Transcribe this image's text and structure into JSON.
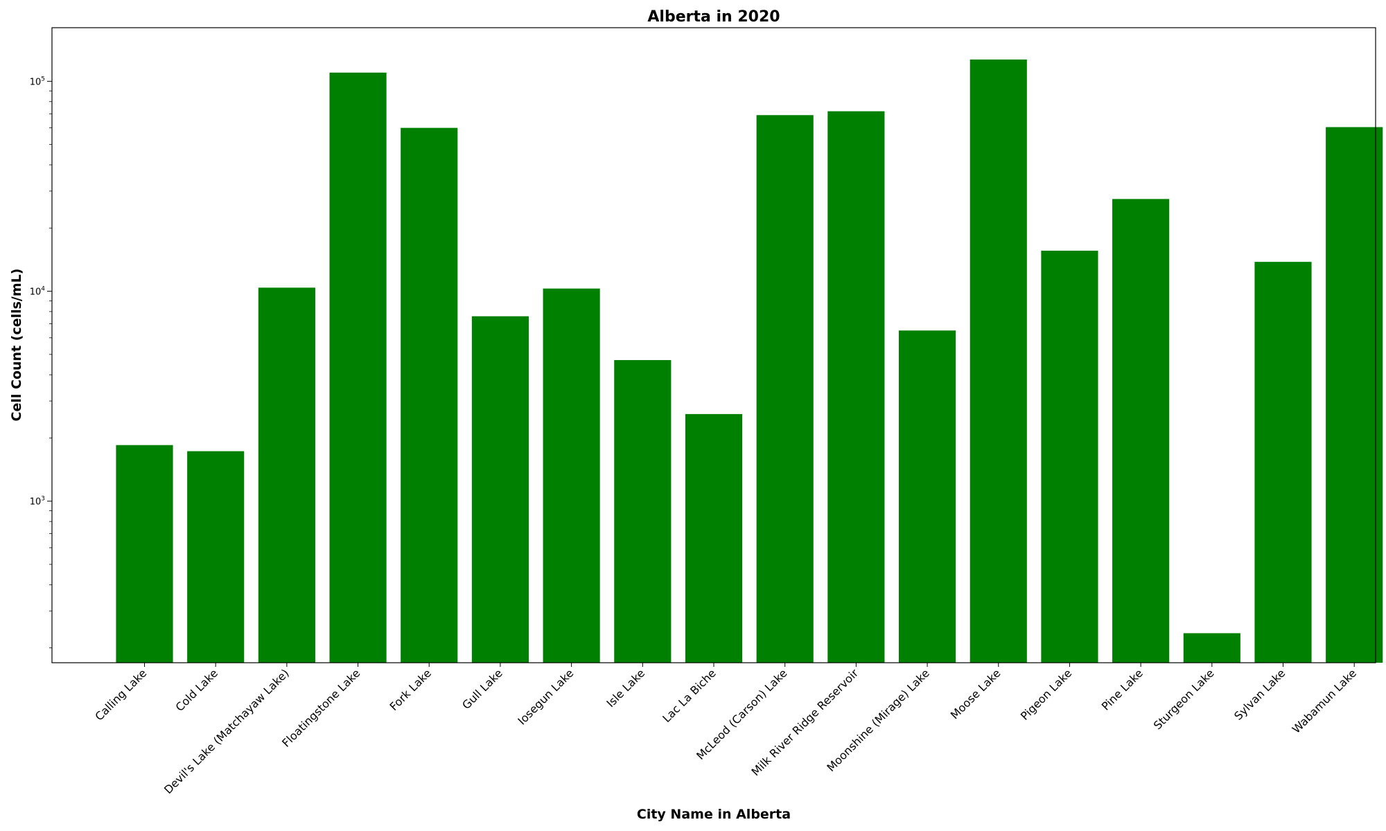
{
  "chart_data": {
    "type": "bar",
    "title": "Alberta in 2020",
    "xlabel": "City Name in Alberta",
    "ylabel": "Cell Count (cells/mL)",
    "yscale": "log",
    "ylim": [
      170,
      180000
    ],
    "yticks": [
      {
        "value": 1000,
        "base": "10",
        "exp": "3"
      },
      {
        "value": 10000,
        "base": "10",
        "exp": "4"
      },
      {
        "value": 100000,
        "base": "10",
        "exp": "5"
      }
    ],
    "bar_color": "#008000",
    "grid": false,
    "categories": [
      "Calling Lake",
      "Cold Lake",
      "Devil's Lake (Matchayaw Lake)",
      "Floatingstone Lake",
      "Fork Lake",
      "Gull Lake",
      "Iosegun Lake",
      "Isle Lake",
      "Lac La Biche",
      "McLeod (Carson) Lake",
      "Milk River Ridge Reservoir",
      "Moonshine (Mirage) Lake",
      "Moose Lake",
      "Pigeon Lake",
      "Pine Lake",
      "Sturgeon Lake",
      "Sylvan Lake",
      "Wabamun Lake"
    ],
    "values": [
      1850,
      1730,
      10400,
      110000,
      60000,
      7600,
      10300,
      4700,
      2600,
      69000,
      72000,
      6500,
      127000,
      15600,
      27500,
      235,
      13800,
      60500
    ]
  }
}
